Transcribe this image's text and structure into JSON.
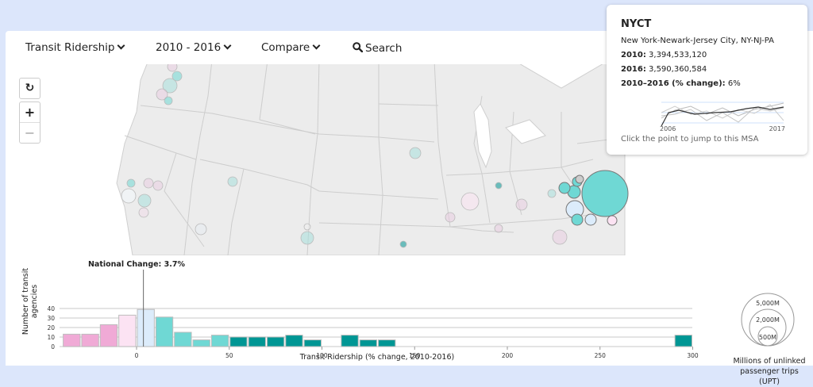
{
  "toolbar": {
    "metric_label": "Transit Ridership",
    "period_label": "2010 - 2016",
    "compare_label": "Compare",
    "search_label": "Search"
  },
  "map_controls": {
    "reset_icon": "refresh-icon",
    "zoom_in": "+",
    "zoom_out": "−"
  },
  "tooltip": {
    "title": "NYCT",
    "msa": "New York-Newark-Jersey City, NY-NJ-PA",
    "row1_label": "2010:",
    "row1_value": "3,394,533,120",
    "row2_label": "2016:",
    "row2_value": "3,590,360,584",
    "row3_label": "2010–2016 (% change):",
    "row3_value": "6%",
    "spark_start": "2006",
    "spark_end": "2017",
    "hint": "Click the point to jump to this MSA"
  },
  "colors": {
    "strong_decline": "#f0aad6",
    "mild_decline": "#fce3f3",
    "flat": "#dcecfb",
    "mild_growth": "#6fd8d4",
    "strong_growth": "#009694",
    "map_fill": "#ececec",
    "map_stroke": "#c8c8c8",
    "page_bg": "#dce6fb"
  },
  "chart_data": {
    "type": "bar",
    "title": "National Change: 3.7%",
    "national_change": 3.7,
    "xlabel": "Transit Ridership (% change, 2010-2016)",
    "ylabel": "Number of transit agencies",
    "x_ticks": [
      0,
      50,
      100,
      150,
      200,
      250,
      300
    ],
    "y_ticks": [
      0,
      10,
      20,
      30,
      40
    ],
    "xlim": [
      -45,
      300
    ],
    "ylim": [
      0,
      40
    ],
    "grid": true,
    "bin_width": 10,
    "bins": [
      {
        "start": -40,
        "count": 13,
        "color": "#f0aad6"
      },
      {
        "start": -30,
        "count": 13,
        "color": "#f0aad6"
      },
      {
        "start": -20,
        "count": 23,
        "color": "#f0aad6"
      },
      {
        "start": -10,
        "count": 33,
        "color": "#fce3f3"
      },
      {
        "start": 0,
        "count": 39,
        "color": "#dcecfb"
      },
      {
        "start": 10,
        "count": 31,
        "color": "#6fd8d4"
      },
      {
        "start": 20,
        "count": 15,
        "color": "#6fd8d4"
      },
      {
        "start": 30,
        "count": 7,
        "color": "#6fd8d4"
      },
      {
        "start": 40,
        "count": 12,
        "color": "#6fd8d4"
      },
      {
        "start": 50,
        "count": 10,
        "color": "#009694"
      },
      {
        "start": 60,
        "count": 10,
        "color": "#009694"
      },
      {
        "start": 70,
        "count": 10,
        "color": "#009694"
      },
      {
        "start": 80,
        "count": 12,
        "color": "#009694"
      },
      {
        "start": 90,
        "count": 7,
        "color": "#009694"
      },
      {
        "start": 110,
        "count": 12,
        "color": "#009694"
      },
      {
        "start": 120,
        "count": 7,
        "color": "#009694"
      },
      {
        "start": 130,
        "count": 7,
        "color": "#009694"
      },
      {
        "start": 290,
        "count": 12,
        "color": "#009694"
      }
    ]
  },
  "size_legend": {
    "circles": [
      "5,000M",
      "2,000M",
      "500M"
    ],
    "caption_line1": "Millions of unlinked",
    "caption_line2": "passenger trips (UPT)"
  }
}
